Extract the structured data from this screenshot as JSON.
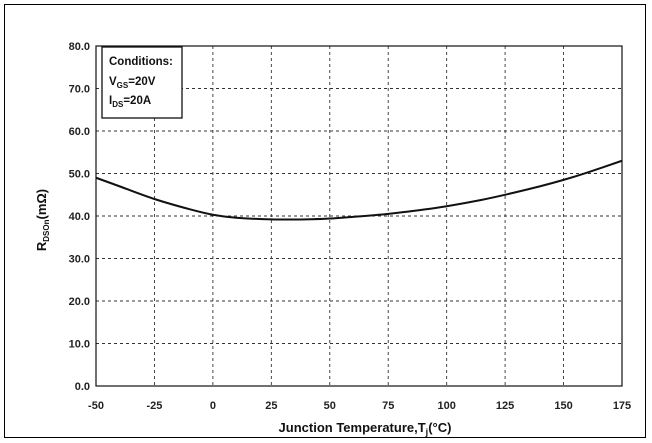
{
  "chart_data": {
    "type": "line",
    "title": "",
    "xlabel": {
      "main": "Junction Temperature,T",
      "sub": "j",
      "tail": "(°C)"
    },
    "ylabel": {
      "main": "R",
      "sub": "DSOn",
      "tail": "(mΩ)"
    },
    "xlim": [
      -50,
      175
    ],
    "ylim": [
      0,
      80
    ],
    "x_ticks": [
      "-50",
      "-25",
      "0",
      "25",
      "50",
      "75",
      "100",
      "125",
      "150",
      "175"
    ],
    "y_ticks": [
      "0.0",
      "10.0",
      "20.0",
      "30.0",
      "40.0",
      "50.0",
      "60.0",
      "70.0",
      "80.0"
    ],
    "grid": true,
    "series": [
      {
        "x": [
          -50,
          -40,
          -25,
          -10,
          0,
          10,
          25,
          40,
          50,
          60,
          75,
          90,
          100,
          115,
          125,
          140,
          150,
          160,
          175
        ],
        "y": [
          49.0,
          47.0,
          44.0,
          41.6,
          40.3,
          39.6,
          39.2,
          39.2,
          39.4,
          39.8,
          40.5,
          41.5,
          42.3,
          43.8,
          45.0,
          47.0,
          48.5,
          50.2,
          53.0
        ]
      }
    ],
    "annotation": {
      "lines": [
        {
          "main": "Conditions:",
          "sub": "",
          "tail": ""
        },
        {
          "main": "V",
          "sub": "GS",
          "tail": "=20V"
        },
        {
          "main": "I",
          "sub": "DS",
          "tail": "=20A"
        }
      ]
    },
    "colors": {
      "line": "#111111",
      "grid": "#333333"
    }
  }
}
